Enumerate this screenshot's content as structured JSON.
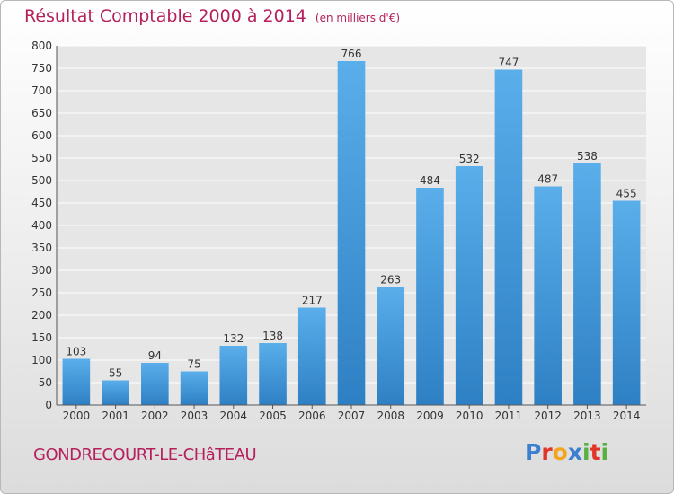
{
  "header": {
    "title": "Résultat Comptable 2000 à 2014",
    "subtitle": "(en milliers d'€)"
  },
  "footer": {
    "place": "GONDRECOURT-LE-CHâTEAU",
    "logo_letters": [
      "P",
      "r",
      "o",
      "x",
      "i",
      "t",
      "i"
    ],
    "logo_colors": [
      "#3a7fd0",
      "#e0342a",
      "#f2a51d",
      "#3a7fd0",
      "#57b043",
      "#e0342a",
      "#57b043"
    ]
  },
  "colors": {
    "bar": "#4a9fe0",
    "title": "#b5205c"
  },
  "chart_data": {
    "type": "bar",
    "title": "Résultat Comptable 2000 à 2014",
    "subtitle": "(en milliers d'€)",
    "categories": [
      "2000",
      "2001",
      "2002",
      "2003",
      "2004",
      "2005",
      "2006",
      "2007",
      "2008",
      "2009",
      "2010",
      "2011",
      "2012",
      "2013",
      "2014"
    ],
    "values": [
      103,
      55,
      94,
      75,
      132,
      138,
      217,
      766,
      263,
      484,
      532,
      747,
      487,
      538,
      455
    ],
    "yticks": [
      0,
      50,
      100,
      150,
      200,
      250,
      300,
      350,
      400,
      450,
      500,
      550,
      600,
      650,
      700,
      750,
      800
    ],
    "ylim": [
      0,
      800
    ],
    "grid": true,
    "legend": "none"
  }
}
